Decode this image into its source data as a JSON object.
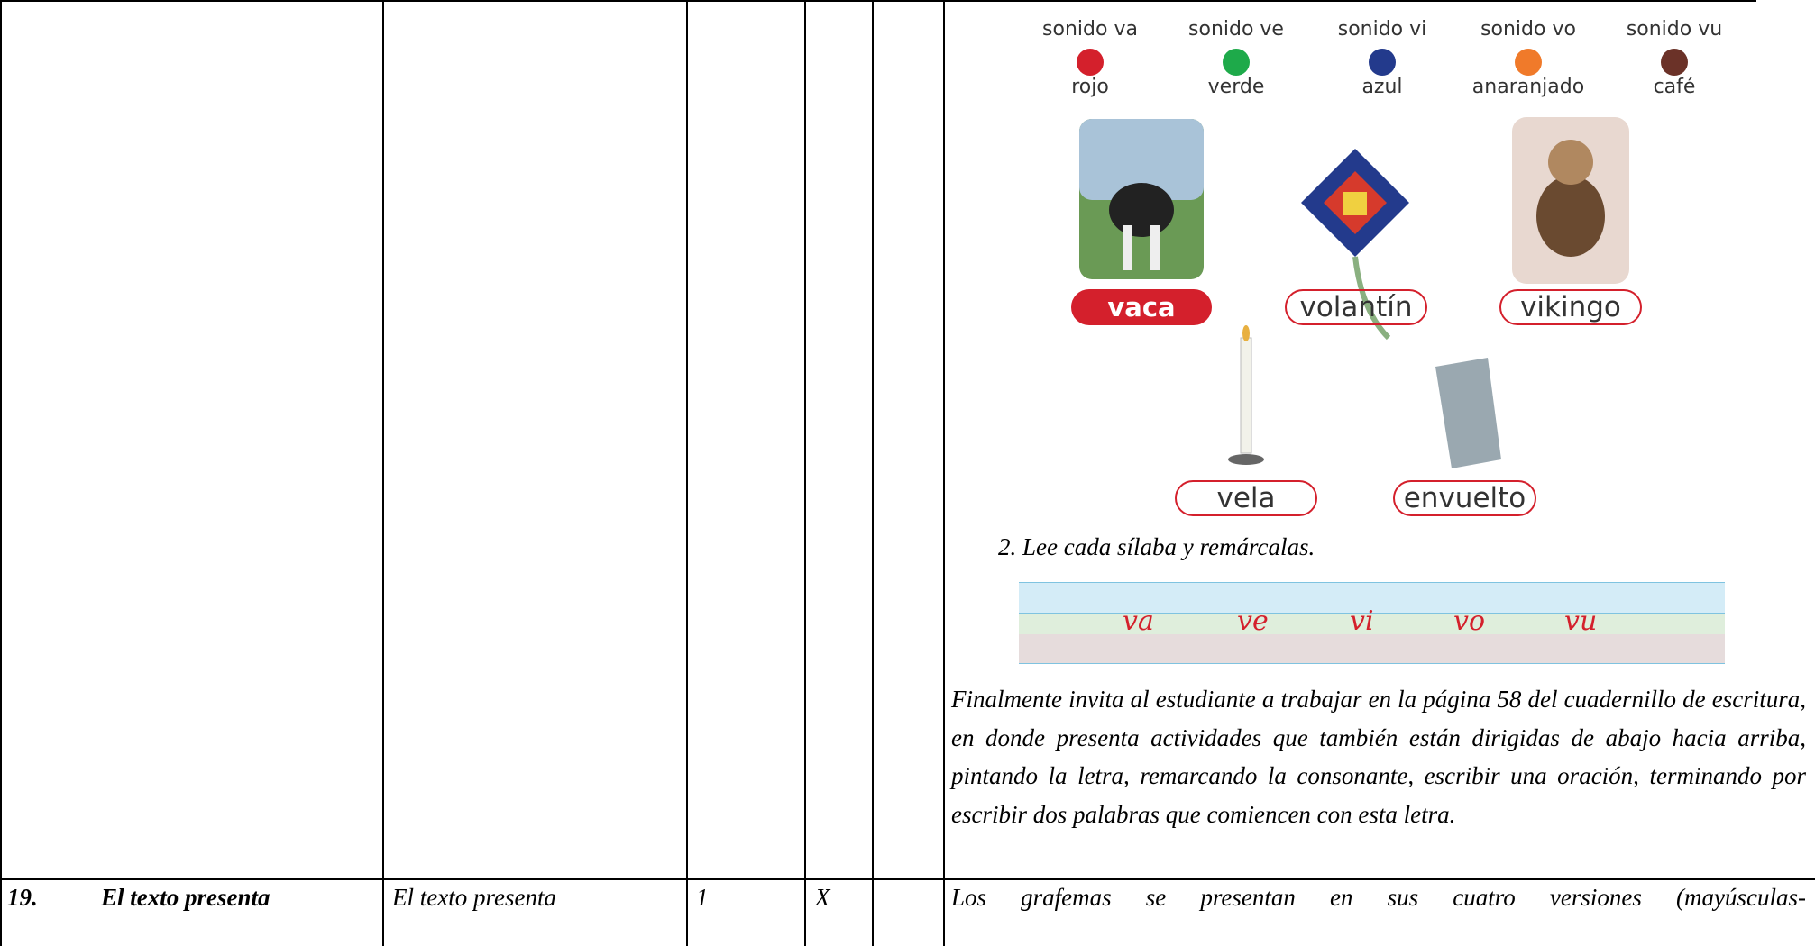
{
  "legend": [
    {
      "sound": "sonido va",
      "color": "rojo"
    },
    {
      "sound": "sonido ve",
      "color": "verde"
    },
    {
      "sound": "sonido vi",
      "color": "azul"
    },
    {
      "sound": "sonido vo",
      "color": "anaranjado"
    },
    {
      "sound": "sonido vu",
      "color": "café"
    }
  ],
  "words": [
    "vaca",
    "volantín",
    "vikingo",
    "vela",
    "envuelto"
  ],
  "instruction": "2.  Lee cada sílaba y remárcalas.",
  "syllables": [
    "va",
    "ve",
    "vi",
    "vo",
    "vu"
  ],
  "paragraph": "Finalmente invita al estudiante a trabajar en la página 58 del cuadernillo de escritura, en donde presenta actividades que también están dirigidas de abajo hacia arriba, pintando la letra, remarcando la consonante, escribir una oración, terminando por escribir dos palabras que comiencen con esta letra.",
  "table": {
    "rows": [
      {
        "number": "19.",
        "item": "El texto presenta",
        "description": "El texto presenta",
        "score": "1",
        "mark": "X",
        "comment": "Los grafemas se presentan en sus cuatro versiones (mayúsculas-"
      }
    ]
  }
}
